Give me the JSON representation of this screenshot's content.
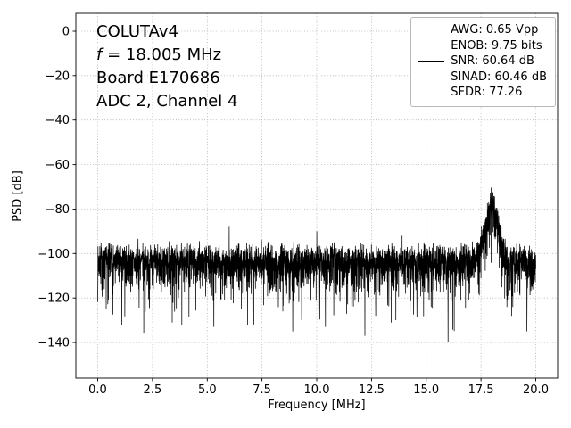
{
  "annotation": {
    "device": "COLUTAv4",
    "f_symbol": "f",
    "f_rest": " = 18.005 MHz",
    "board": "Board E170686",
    "channel": "ADC 2, Channel 4"
  },
  "legend": {
    "position": "upper right",
    "entries": [
      {
        "label": "AWG: 0.65 Vpp",
        "has_line_sample": false
      },
      {
        "label": "ENOB: 9.75 bits",
        "has_line_sample": false
      },
      {
        "label": "SNR: 60.64 dB",
        "has_line_sample": true
      },
      {
        "label": "SINAD: 60.46 dB",
        "has_line_sample": false
      },
      {
        "label": "SFDR: 77.26",
        "has_line_sample": false
      }
    ]
  },
  "chart_data": {
    "type": "line",
    "title": "",
    "xlabel": "Frequency [MHz]",
    "ylabel": "PSD [dB]",
    "xlim": [
      -1,
      21
    ],
    "ylim": [
      -156,
      8
    ],
    "grid": true,
    "grid_color": "#b0b0b0",
    "line_color": "#000000",
    "background": "#ffffff",
    "xticks": [
      {
        "v": 0.0,
        "label": "0.0"
      },
      {
        "v": 2.5,
        "label": "2.5"
      },
      {
        "v": 5.0,
        "label": "5.0"
      },
      {
        "v": 7.5,
        "label": "7.5"
      },
      {
        "v": 10.0,
        "label": "10.0"
      },
      {
        "v": 12.5,
        "label": "12.5"
      },
      {
        "v": 15.0,
        "label": "15.0"
      },
      {
        "v": 17.5,
        "label": "17.5"
      },
      {
        "v": 20.0,
        "label": "20.0"
      }
    ],
    "yticks": [
      {
        "v": 0,
        "label": "0"
      },
      {
        "v": -20,
        "label": "−20"
      },
      {
        "v": -40,
        "label": "−40"
      },
      {
        "v": -60,
        "label": "−60"
      },
      {
        "v": -80,
        "label": "−80"
      },
      {
        "v": -100,
        "label": "−100"
      },
      {
        "v": -120,
        "label": "−120"
      },
      {
        "v": -140,
        "label": "−140"
      }
    ],
    "series_name": "SNR: 60.64 dB",
    "n_points": 4000,
    "seed": 7,
    "noise_floor_db": -105,
    "noise_model": "exponential-power",
    "signal_peak": {
      "freq_mhz": 18.005,
      "psd_db": -12
    },
    "hump": {
      "center_mhz": 18.0,
      "sigma_mhz": 0.3,
      "amplitude_db": 25
    },
    "spurs": [
      {
        "f": 0.15,
        "db": -95
      },
      {
        "f": 2.6,
        "db": -96
      },
      {
        "f": 6.0,
        "db": -88
      },
      {
        "f": 7.0,
        "db": -97
      },
      {
        "f": 10.0,
        "db": -90
      },
      {
        "f": 12.5,
        "db": -96
      },
      {
        "f": 13.9,
        "db": -92
      },
      {
        "f": 14.9,
        "db": -95
      },
      {
        "f": 16.8,
        "db": -96
      },
      {
        "f": 19.3,
        "db": -97
      }
    ],
    "deep_dips": [
      {
        "f": 1.1,
        "db": -132
      },
      {
        "f": 2.1,
        "db": -136
      },
      {
        "f": 3.4,
        "db": -131
      },
      {
        "f": 5.3,
        "db": -133
      },
      {
        "f": 7.45,
        "db": -145
      },
      {
        "f": 8.9,
        "db": -135
      },
      {
        "f": 10.4,
        "db": -133
      },
      {
        "f": 12.2,
        "db": -137
      },
      {
        "f": 13.4,
        "db": -131
      },
      {
        "f": 16.0,
        "db": -140
      },
      {
        "f": 18.9,
        "db": -128
      },
      {
        "f": 19.6,
        "db": -135
      }
    ]
  }
}
